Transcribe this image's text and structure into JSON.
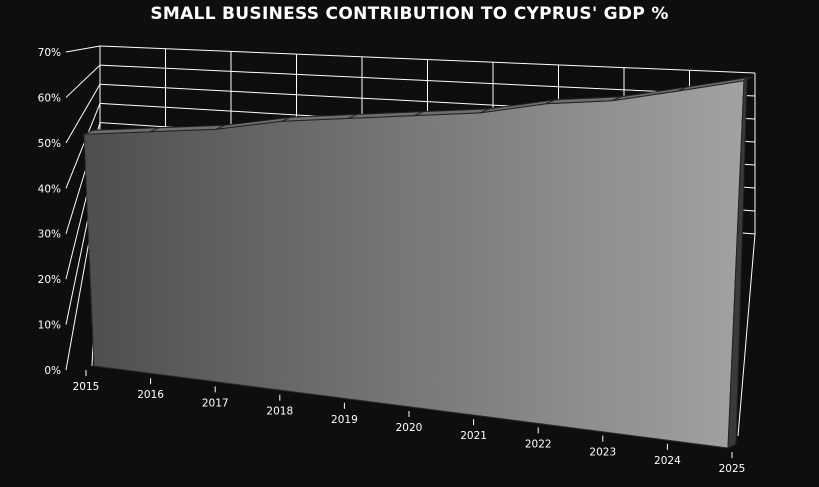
{
  "chart_data": {
    "type": "area",
    "title": "SMALL BUSINESS CONTRIBUTION TO CYPRUS' GDP %",
    "categories": [
      "2015",
      "2016",
      "2017",
      "2018",
      "2019",
      "2020",
      "2021",
      "2022",
      "2023",
      "2024",
      "2025"
    ],
    "series": [
      {
        "values": [
          48,
          48,
          48,
          49,
          49,
          49,
          49,
          50,
          50,
          51,
          52
        ]
      }
    ],
    "ylim": [
      0,
      70
    ],
    "yticks": [
      "0%",
      "10%",
      "20%",
      "30%",
      "40%",
      "50%",
      "60%",
      "70%"
    ],
    "grid": true,
    "legend": "none",
    "style": "3d",
    "colors": {
      "background": "#0e0e0e",
      "grid": "#ffffff",
      "text": "#ffffff",
      "area_dark": "#4e4e4e",
      "area_light": "#a2a2a2",
      "top_face": "#6e6e6e"
    }
  }
}
